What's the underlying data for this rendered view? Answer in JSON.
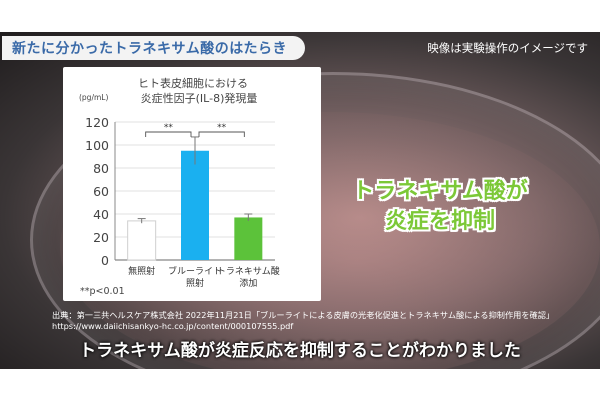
{
  "header": {
    "title": "新たに分かったトラネキサム酸のはたらき",
    "note": "映像は実験操作のイメージです"
  },
  "chart_data": {
    "type": "bar",
    "title_line1": "ヒト表皮細胞における",
    "title_line2": "炎症性因子(IL-8)発現量",
    "unit": "(pg/mL)",
    "yticks": [
      "120",
      "100",
      "80",
      "60",
      "40",
      "20",
      "0"
    ],
    "ylim": [
      0,
      120
    ],
    "categories": [
      {
        "line1": "無照射",
        "line2": ""
      },
      {
        "line1": "ブルーライト",
        "line2": "照射"
      },
      {
        "line1": "トラネキサム酸",
        "line2": "添加"
      }
    ],
    "values": [
      34,
      95,
      37
    ],
    "errors": [
      2,
      12,
      3
    ],
    "colors": [
      "#ffffff",
      "#1ab0f0",
      "#5cc23a"
    ],
    "significance": [
      "**",
      "**"
    ],
    "footnote": "**p<0.01",
    "grid": true
  },
  "headline": {
    "line1": "トラネキサム酸が",
    "line2": "炎症を抑制"
  },
  "source": {
    "line1": "出典：第一三共ヘルスケア株式会社 2022年11月21日「ブルーライトによる皮膚の光老化促進とトラネキサム酸による抑制作用を確認」",
    "line2": "https://www.daiichisankyo-hc.co.jp/content/000107555.pdf"
  },
  "subtitle": "トラネキサム酸が炎症反応を抑制することがわかりました"
}
